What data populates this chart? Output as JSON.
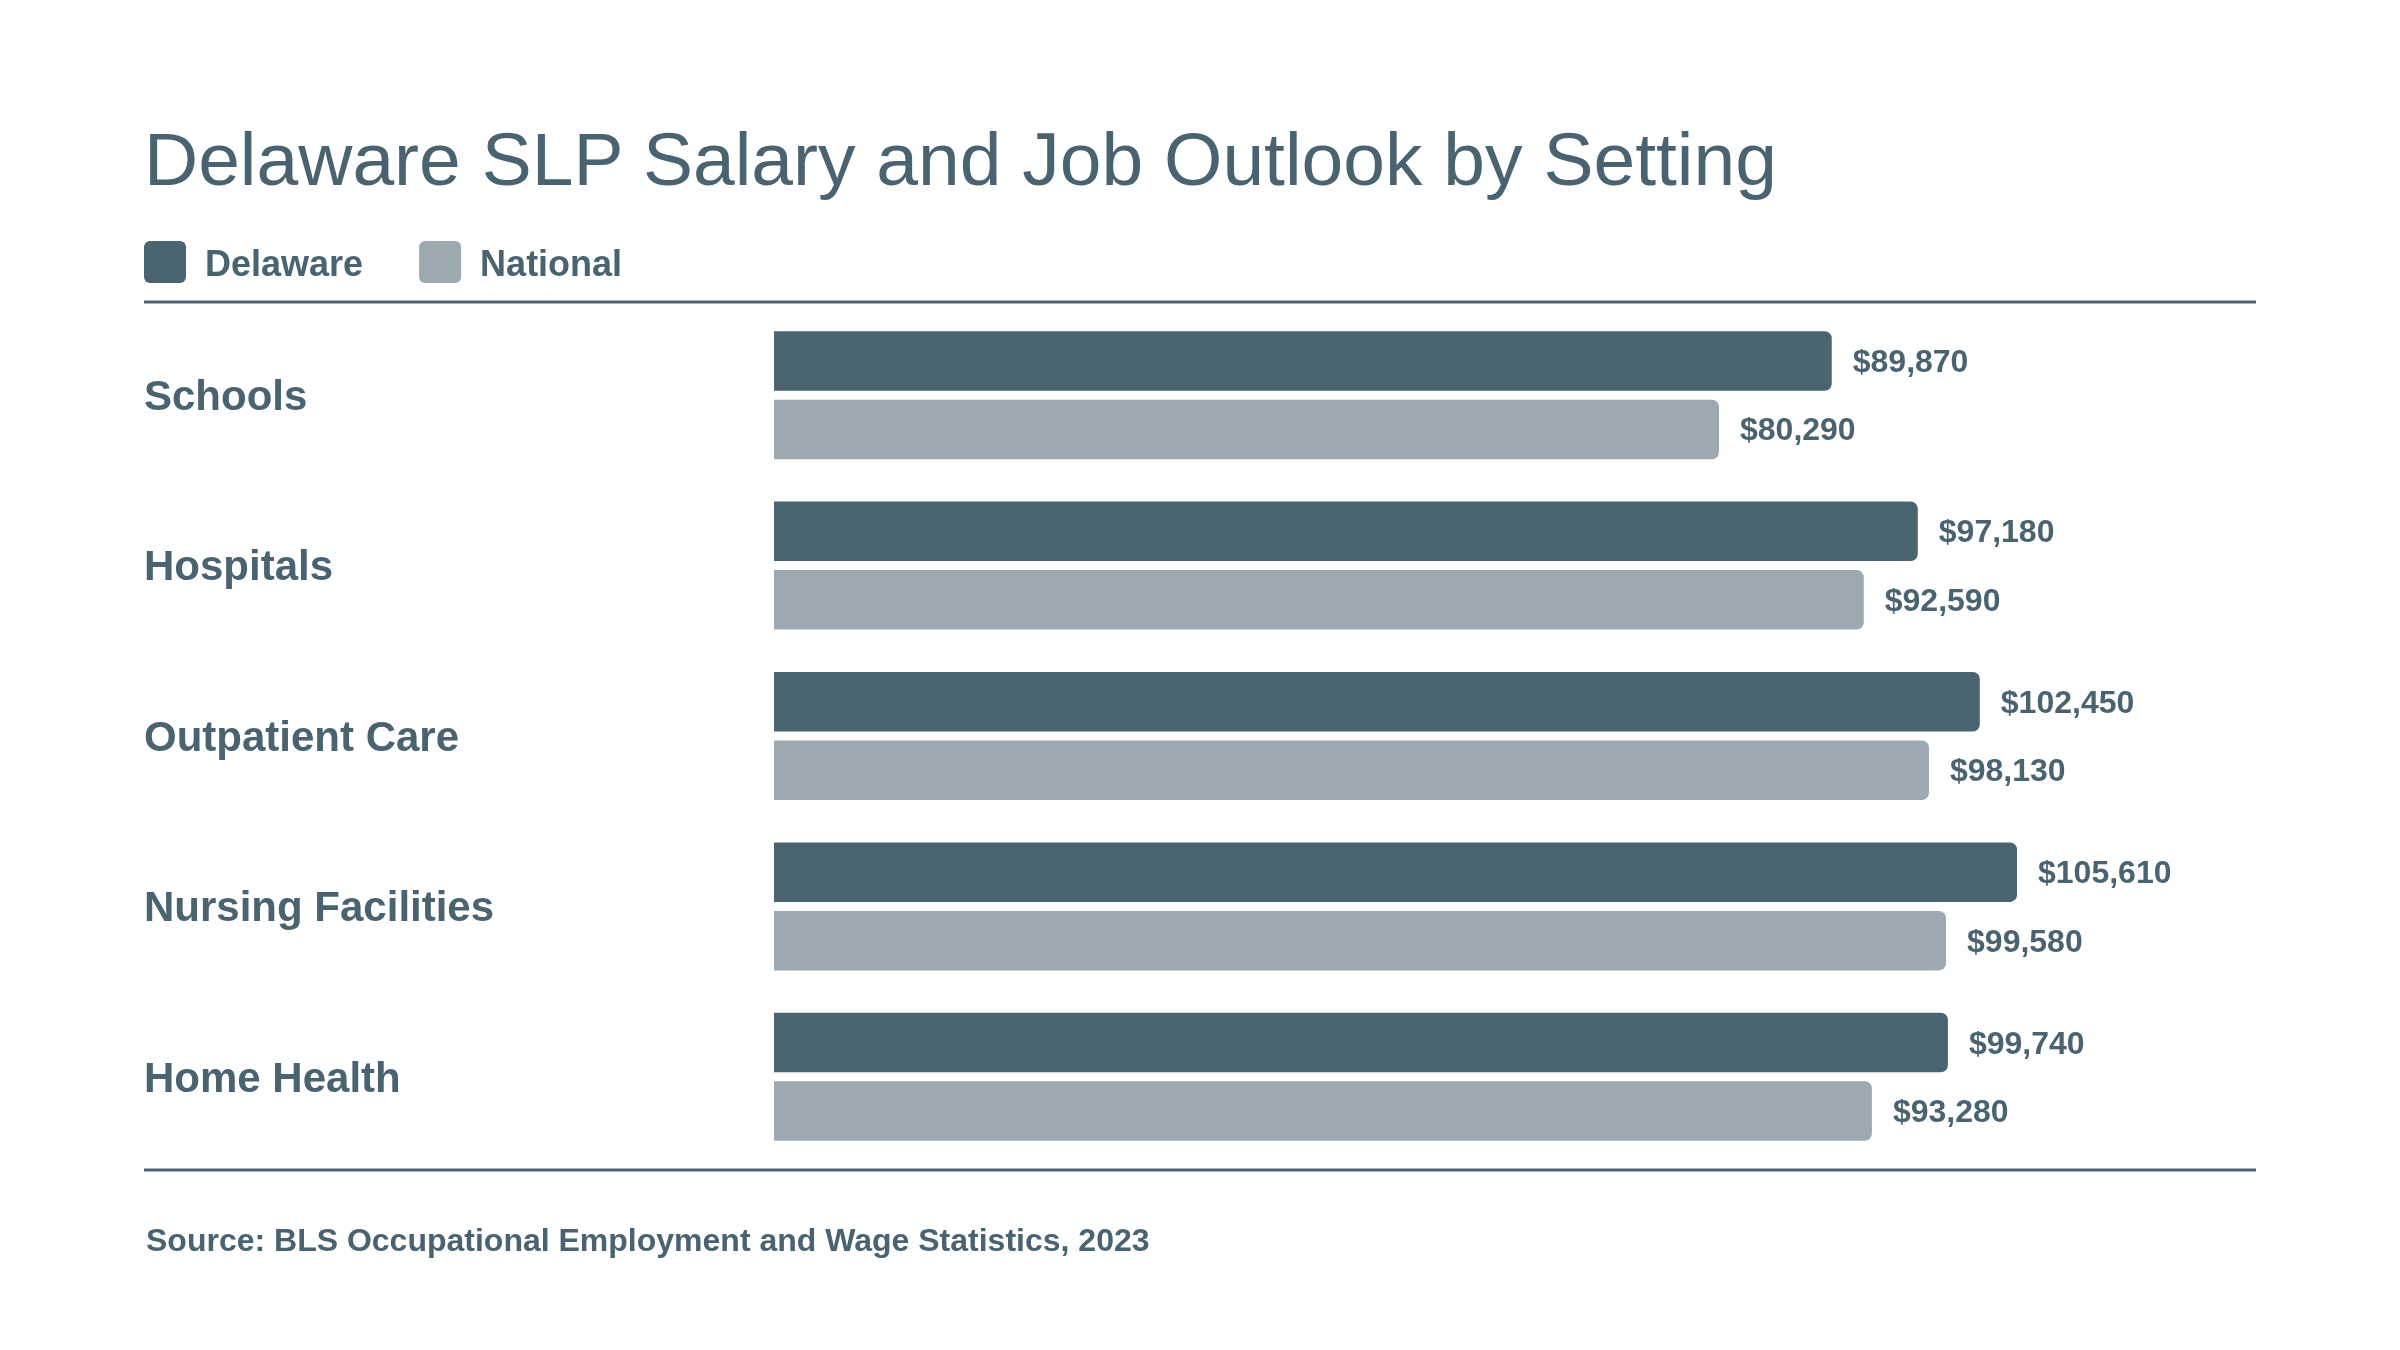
{
  "chart_data": {
    "type": "bar",
    "orientation": "horizontal",
    "title": "Delaware SLP Salary and Job Outlook by Setting",
    "categories": [
      "Schools",
      "Hospitals",
      "Outpatient Care",
      "Nursing Facilities",
      "Home Health"
    ],
    "series": [
      {
        "name": "Delaware",
        "color": "#4a6470",
        "values": [
          89870,
          97180,
          102450,
          105610,
          99740
        ],
        "value_labels": [
          "$89,870",
          "$97,180",
          "$102,450",
          "$105,610",
          "$99,740"
        ]
      },
      {
        "name": "National",
        "color": "#9ca9b0",
        "values": [
          80290,
          92590,
          98130,
          99580,
          93280
        ],
        "value_labels": [
          "$80,290",
          "$92,590",
          "$98,130",
          "$99,580",
          "$93,280"
        ]
      }
    ],
    "legend": "top left",
    "tick_labels": "y",
    "annotations": [
      "Source: BLS Occupational Employment and Wage Statistics, 2023"
    ]
  }
}
